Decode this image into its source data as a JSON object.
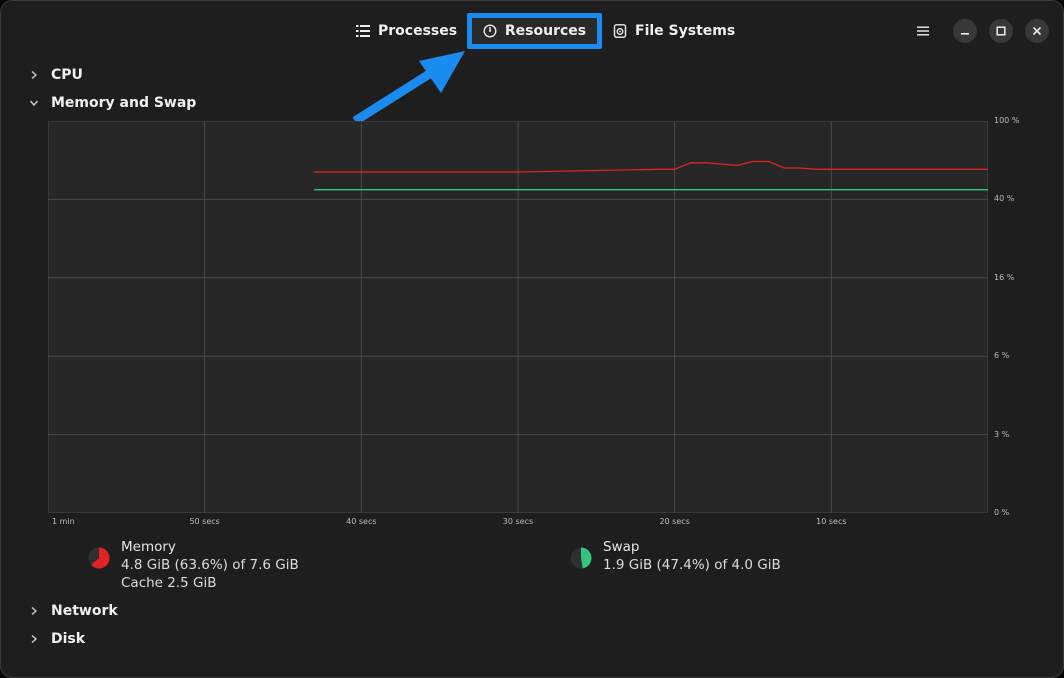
{
  "header": {
    "tabs": [
      {
        "label": "Processes",
        "icon": "list-icon"
      },
      {
        "label": "Resources",
        "icon": "gauge-icon",
        "selected": true
      },
      {
        "label": "File Systems",
        "icon": "disk-icon"
      }
    ],
    "controls": [
      "menu-icon",
      "minimize-icon",
      "maximize-icon",
      "close-icon"
    ]
  },
  "sections": {
    "cpu": {
      "label": "CPU",
      "expanded": false
    },
    "memory": {
      "label": "Memory and Swap",
      "expanded": true
    },
    "network": {
      "label": "Network",
      "expanded": false
    },
    "disk": {
      "label": "Disk",
      "expanded": false
    }
  },
  "chart_data": {
    "type": "line",
    "y_tick_labels": [
      "100 %",
      "40 %",
      "16 %",
      "6 %",
      "3 %",
      "0 %"
    ],
    "x_tick_labels": [
      "1 min",
      "50 secs",
      "40 secs",
      "30 secs",
      "20 secs",
      "10 secs"
    ],
    "grid": true,
    "series": [
      {
        "name": "Memory",
        "color": "#e02424",
        "x_secs": [
          43,
          30,
          21,
          20,
          19,
          18,
          17,
          16,
          15,
          14,
          13,
          12,
          11,
          10,
          9,
          5,
          0
        ],
        "y_percent": [
          61,
          61,
          63,
          63,
          68,
          68,
          67,
          66,
          69,
          69,
          64,
          64,
          63,
          63,
          63,
          63,
          63
        ]
      },
      {
        "name": "Swap",
        "color": "#33c47e",
        "x_secs": [
          43,
          0
        ],
        "y_percent": [
          47.4,
          47.4
        ]
      }
    ]
  },
  "legend": {
    "memory": {
      "title": "Memory",
      "line1": "4.8 GiB (63.6%) of 7.6 GiB",
      "line2": "Cache 2.5 GiB",
      "color": "#e02424",
      "fraction": 0.636
    },
    "swap": {
      "title": "Swap",
      "line1": "1.9 GiB (47.4%) of 4.0 GiB",
      "color": "#33c47e",
      "fraction": 0.474
    }
  },
  "colors": {
    "annotation_arrow": "#1a8cf0",
    "tab_highlight": "#1a8cf0"
  }
}
